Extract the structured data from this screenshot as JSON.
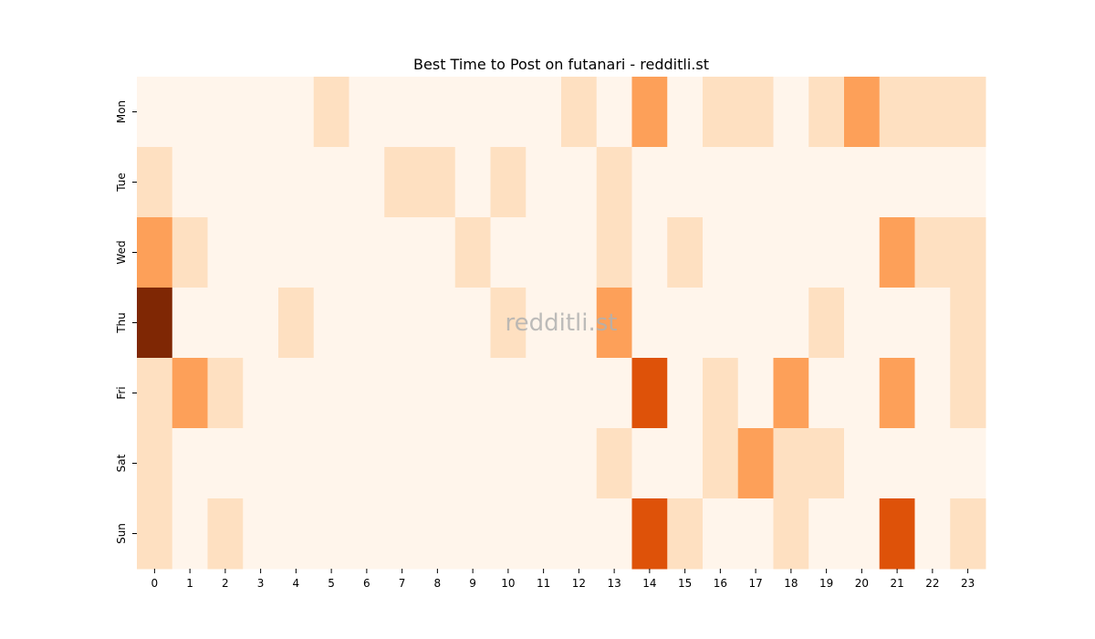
{
  "chart_data": {
    "type": "heatmap",
    "title": "Best Time to Post on futanari - redditli.st",
    "xlabel": "",
    "ylabel": "",
    "x_categories": [
      "0",
      "1",
      "2",
      "3",
      "4",
      "5",
      "6",
      "7",
      "8",
      "9",
      "10",
      "11",
      "12",
      "13",
      "14",
      "15",
      "16",
      "17",
      "18",
      "19",
      "20",
      "21",
      "22",
      "23"
    ],
    "y_categories": [
      "Mon",
      "Tue",
      "Wed",
      "Thu",
      "Fri",
      "Sat",
      "Sun"
    ],
    "values": [
      [
        0,
        0,
        0,
        0,
        0,
        1,
        0,
        0,
        0,
        0,
        0,
        0,
        1,
        0,
        3,
        0,
        1,
        1,
        0,
        1,
        3,
        1,
        1,
        1
      ],
      [
        1,
        0,
        0,
        0,
        0,
        0,
        0,
        1,
        1,
        0,
        1,
        0,
        0,
        1,
        0,
        0,
        0,
        0,
        0,
        0,
        0,
        0,
        0,
        0
      ],
      [
        3,
        1,
        0,
        0,
        0,
        0,
        0,
        0,
        0,
        1,
        0,
        0,
        0,
        1,
        0,
        1,
        0,
        0,
        0,
        0,
        0,
        3,
        1,
        1
      ],
      [
        7,
        0,
        0,
        0,
        1,
        0,
        0,
        0,
        0,
        0,
        1,
        0,
        0,
        3,
        0,
        0,
        0,
        0,
        0,
        1,
        0,
        0,
        0,
        1
      ],
      [
        1,
        3,
        1,
        0,
        0,
        0,
        0,
        0,
        0,
        0,
        0,
        0,
        0,
        0,
        5,
        0,
        1,
        0,
        3,
        0,
        0,
        3,
        0,
        1
      ],
      [
        1,
        0,
        0,
        0,
        0,
        0,
        0,
        0,
        0,
        0,
        0,
        0,
        0,
        1,
        0,
        0,
        1,
        3,
        1,
        1,
        0,
        0,
        0,
        0
      ],
      [
        1,
        0,
        1,
        0,
        0,
        0,
        0,
        0,
        0,
        0,
        0,
        0,
        0,
        0,
        5,
        1,
        0,
        0,
        1,
        0,
        0,
        5,
        0,
        1
      ]
    ],
    "value_range": [
      0,
      7
    ],
    "colormap": "Oranges",
    "colors": [
      "#fff5eb",
      "#fdd0a2",
      "#fd8d3c",
      "#d94801",
      "#7f2704"
    ],
    "colorbar": false,
    "grid": false,
    "watermark": "redditli.st"
  }
}
